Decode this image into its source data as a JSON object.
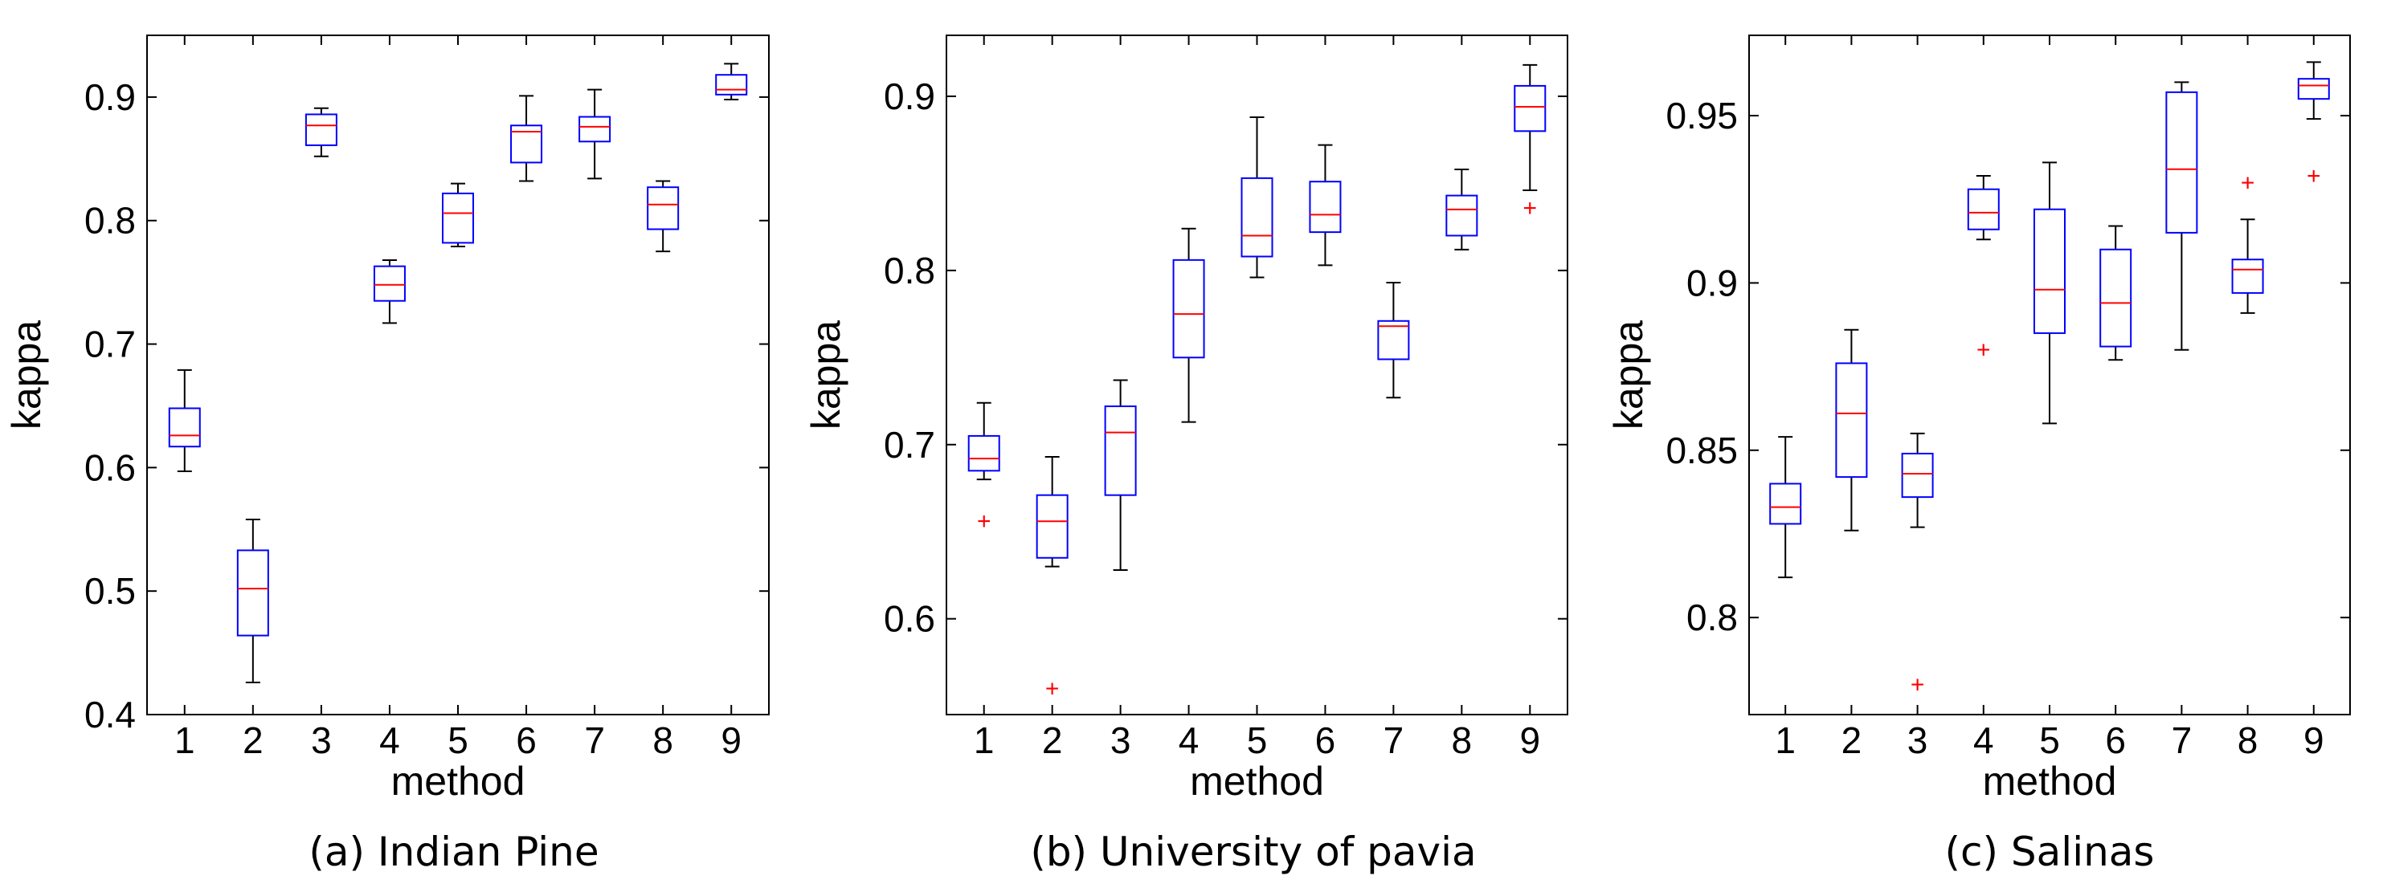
{
  "chart_data": [
    {
      "type": "boxplot",
      "caption": "(a) Indian Pine",
      "xlabel": "method",
      "ylabel": "kappa",
      "categories": [
        "1",
        "2",
        "3",
        "4",
        "5",
        "6",
        "7",
        "8",
        "9"
      ],
      "ylim": [
        0.4,
        0.95
      ],
      "yticks": [
        0.4,
        0.5,
        0.6,
        0.7,
        0.8,
        0.9
      ],
      "ytick_labels": [
        "0.4",
        "0.5",
        "0.6",
        "0.7",
        "0.8",
        "0.9"
      ],
      "boxes": [
        {
          "whislo": 0.597,
          "q1": 0.617,
          "med": 0.626,
          "q3": 0.648,
          "whishi": 0.679,
          "outliers": []
        },
        {
          "whislo": 0.426,
          "q1": 0.464,
          "med": 0.502,
          "q3": 0.533,
          "whishi": 0.558,
          "outliers": []
        },
        {
          "whislo": 0.852,
          "q1": 0.861,
          "med": 0.877,
          "q3": 0.886,
          "whishi": 0.891,
          "outliers": []
        },
        {
          "whislo": 0.717,
          "q1": 0.735,
          "med": 0.748,
          "q3": 0.763,
          "whishi": 0.768,
          "outliers": []
        },
        {
          "whislo": 0.779,
          "q1": 0.782,
          "med": 0.806,
          "q3": 0.822,
          "whishi": 0.83,
          "outliers": []
        },
        {
          "whislo": 0.832,
          "q1": 0.847,
          "med": 0.872,
          "q3": 0.877,
          "whishi": 0.901,
          "outliers": []
        },
        {
          "whislo": 0.834,
          "q1": 0.864,
          "med": 0.876,
          "q3": 0.884,
          "whishi": 0.906,
          "outliers": []
        },
        {
          "whislo": 0.775,
          "q1": 0.793,
          "med": 0.813,
          "q3": 0.827,
          "whishi": 0.832,
          "outliers": []
        },
        {
          "whislo": 0.898,
          "q1": 0.902,
          "med": 0.906,
          "q3": 0.918,
          "whishi": 0.927,
          "outliers": []
        }
      ]
    },
    {
      "type": "boxplot",
      "caption": "(b) University of pavia",
      "xlabel": "method",
      "ylabel": "kappa",
      "categories": [
        "1",
        "2",
        "3",
        "4",
        "5",
        "6",
        "7",
        "8",
        "9"
      ],
      "ylim": [
        0.545,
        0.935
      ],
      "yticks": [
        0.6,
        0.7,
        0.8,
        0.9
      ],
      "ytick_labels": [
        "0.6",
        "0.7",
        "0.8",
        "0.9"
      ],
      "boxes": [
        {
          "whislo": 0.68,
          "q1": 0.685,
          "med": 0.692,
          "q3": 0.705,
          "whishi": 0.724,
          "outliers": [
            0.656
          ]
        },
        {
          "whislo": 0.63,
          "q1": 0.635,
          "med": 0.656,
          "q3": 0.671,
          "whishi": 0.693,
          "outliers": [
            0.56
          ]
        },
        {
          "whislo": 0.628,
          "q1": 0.671,
          "med": 0.707,
          "q3": 0.722,
          "whishi": 0.737,
          "outliers": []
        },
        {
          "whislo": 0.713,
          "q1": 0.75,
          "med": 0.775,
          "q3": 0.806,
          "whishi": 0.824,
          "outliers": []
        },
        {
          "whislo": 0.796,
          "q1": 0.808,
          "med": 0.82,
          "q3": 0.853,
          "whishi": 0.888,
          "outliers": []
        },
        {
          "whislo": 0.803,
          "q1": 0.822,
          "med": 0.832,
          "q3": 0.851,
          "whishi": 0.872,
          "outliers": []
        },
        {
          "whislo": 0.727,
          "q1": 0.749,
          "med": 0.768,
          "q3": 0.771,
          "whishi": 0.793,
          "outliers": []
        },
        {
          "whislo": 0.812,
          "q1": 0.82,
          "med": 0.835,
          "q3": 0.843,
          "whishi": 0.858,
          "outliers": []
        },
        {
          "whislo": 0.846,
          "q1": 0.88,
          "med": 0.894,
          "q3": 0.906,
          "whishi": 0.918,
          "outliers": [
            0.836
          ]
        }
      ]
    },
    {
      "type": "boxplot",
      "caption": "(c) Salinas",
      "xlabel": "method",
      "ylabel": "kappa",
      "categories": [
        "1",
        "2",
        "3",
        "4",
        "5",
        "6",
        "7",
        "8",
        "9"
      ],
      "ylim": [
        0.771,
        0.974
      ],
      "yticks": [
        0.8,
        0.85,
        0.9,
        0.95
      ],
      "ytick_labels": [
        "0.8",
        "0.85",
        "0.9",
        "0.95"
      ],
      "boxes": [
        {
          "whislo": 0.812,
          "q1": 0.828,
          "med": 0.833,
          "q3": 0.84,
          "whishi": 0.854,
          "outliers": []
        },
        {
          "whislo": 0.826,
          "q1": 0.842,
          "med": 0.861,
          "q3": 0.876,
          "whishi": 0.886,
          "outliers": []
        },
        {
          "whislo": 0.827,
          "q1": 0.836,
          "med": 0.843,
          "q3": 0.849,
          "whishi": 0.855,
          "outliers": [
            0.78
          ]
        },
        {
          "whislo": 0.913,
          "q1": 0.916,
          "med": 0.921,
          "q3": 0.928,
          "whishi": 0.932,
          "outliers": [
            0.88
          ]
        },
        {
          "whislo": 0.858,
          "q1": 0.885,
          "med": 0.898,
          "q3": 0.922,
          "whishi": 0.936,
          "outliers": []
        },
        {
          "whislo": 0.877,
          "q1": 0.881,
          "med": 0.894,
          "q3": 0.91,
          "whishi": 0.917,
          "outliers": []
        },
        {
          "whislo": 0.88,
          "q1": 0.915,
          "med": 0.934,
          "q3": 0.957,
          "whishi": 0.96,
          "outliers": []
        },
        {
          "whislo": 0.891,
          "q1": 0.897,
          "med": 0.904,
          "q3": 0.907,
          "whishi": 0.919,
          "outliers": [
            0.93
          ]
        },
        {
          "whislo": 0.949,
          "q1": 0.955,
          "med": 0.959,
          "q3": 0.961,
          "whishi": 0.966,
          "outliers": [
            0.932
          ]
        }
      ]
    }
  ]
}
